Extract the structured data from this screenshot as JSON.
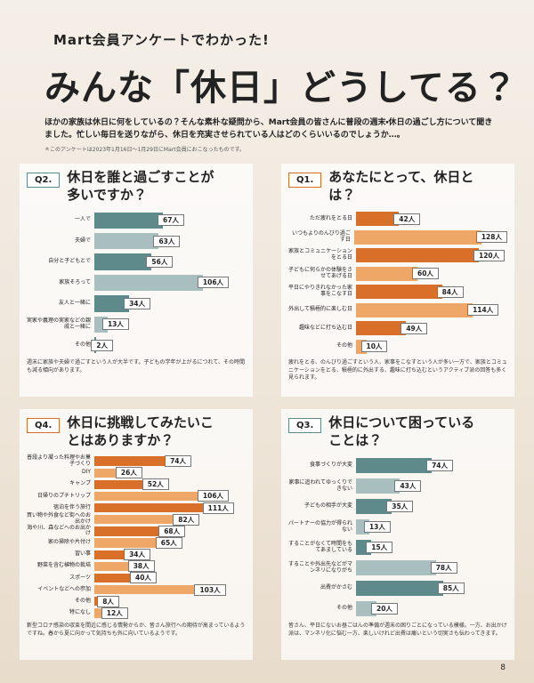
{
  "header": {
    "kicker": "Mart会員アンケートでわかった!",
    "title": "みんな「休日」どうしてる？",
    "intro": "ほかの家族は休日に何をしているの？そんな素朴な疑問から、Mart会員の皆さんに普段の週末・休日の過ごし方について聞きました。忙しい毎日を送りながら、休日を充実させられている人はどのくらいいるのでしょうか…。",
    "note": "＊このアンケートは2023年1月16日～1月29日にMart会員におこなったものです。"
  },
  "chart_data": [
    {
      "type": "bar",
      "label": "Q2.",
      "title": "休日を誰と過ごすことが多いですか？",
      "categories": [
        "一人で",
        "夫婦で",
        "自分と子どもとで",
        "家族そろって",
        "友人と一緒に",
        "実家や義理の実家などの親戚と一緒に",
        "その他"
      ],
      "values": [
        67,
        63,
        56,
        106,
        34,
        13,
        2
      ],
      "value_labels": [
        "67人",
        "63人",
        "56人",
        "106人",
        "34人",
        "13人",
        "2人"
      ],
      "colors": [
        "#5f8a8b",
        "#a9bfbf"
      ],
      "caption": "週末に家族や夫婦で過ごすという人が大半です。子どもの学年が上がるにつれて、その時間も減る傾向があります。"
    },
    {
      "type": "bar",
      "label": "Q1.",
      "title": "あなたにとって、休日とは？",
      "categories": [
        "ただ疲れをとる日",
        "いつもよりのんびり過ごす日",
        "家族とコミュニケーションをとる日",
        "子どもに何らかの体験をさせてあげる日",
        "平日にやりきれなかった家事をこなす日",
        "外出して積極的に楽しむ日",
        "趣味などに打ち込む日",
        "その他"
      ],
      "values": [
        42,
        128,
        120,
        60,
        84,
        114,
        49,
        10
      ],
      "value_labels": [
        "42人",
        "128人",
        "120人",
        "60人",
        "84人",
        "114人",
        "49人",
        "10人"
      ],
      "colors": [
        "#d8702a",
        "#eea766"
      ],
      "caption": "疲れをとる、のんびり過ごすという人、家事をこなすという人が多い一方で、家族とコミュニケーションをとる、積極的に外出する、趣味に打ち込むというアクティブ派の回答も多く見られます。"
    },
    {
      "type": "bar",
      "label": "Q4.",
      "title": "休日に挑戦してみたいことはありますか？",
      "categories": [
        "普段より凝った料理やお菓子づくり",
        "DIY",
        "キャンプ",
        "日帰りのプチトリップ",
        "宿泊を伴う旅行",
        "買い物や外食など街へのお出かけ",
        "海や川、森などへのお出かけ",
        "家の掃除や片付け",
        "習い事",
        "野菜を含む植物の栽培",
        "スポーツ",
        "イベントなどへの参加",
        "その他",
        "特になし"
      ],
      "values": [
        74,
        26,
        52,
        106,
        111,
        82,
        68,
        65,
        34,
        38,
        40,
        103,
        8,
        12
      ],
      "value_labels": [
        "74人",
        "26人",
        "52人",
        "106人",
        "111人",
        "82人",
        "68人",
        "65人",
        "34人",
        "38人",
        "40人",
        "103人",
        "8人",
        "12人"
      ],
      "colors": [
        "#d8702a",
        "#eea766"
      ],
      "caption": "新型コロナ感染の収束を間近に感じる情勢からか、皆さん旅行への期待が高まっているようですね。春から夏に向かって気持ちも外に向いているようです。"
    },
    {
      "type": "bar",
      "label": "Q3.",
      "title": "休日について困っていることは？",
      "categories": [
        "食事づくりが大変",
        "家事に追われてゆっくりできない",
        "子どもの相手が大変",
        "パートナーの協力が得られない",
        "することがなくて時間をもてあましている",
        "することや外出先などがマンネリになりがち",
        "出費がかさむ",
        "その他"
      ],
      "values": [
        74,
        43,
        35,
        13,
        15,
        78,
        85,
        20
      ],
      "value_labels": [
        "74人",
        "43人",
        "35人",
        "13人",
        "15人",
        "78人",
        "85人",
        "20人"
      ],
      "colors": [
        "#5f8a8b",
        "#a9bfbf"
      ],
      "caption": "皆さん、平日にないお昼ごはんの準備が週末の困りごとになっている模様。一方、お出かけ派は、マンネリ化に悩む一方、楽しいけれど出費は痛いという切実さも伝わってきます。"
    }
  ],
  "page_number": "8"
}
